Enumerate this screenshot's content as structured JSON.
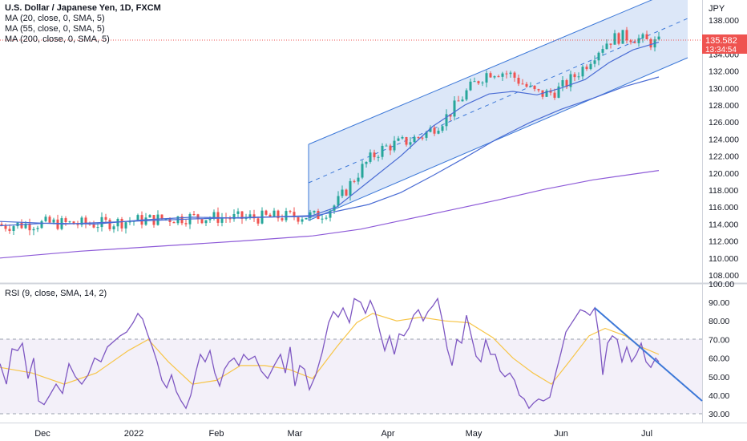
{
  "title": "U.S. Dollar / Japanese Yen, 1D, FXCM",
  "currency": "JPY",
  "price_label": "135.582",
  "countdown_label": "13:34:54",
  "legends": {
    "ma20": "MA (20, close, 0, SMA, 5)",
    "ma55": "MA (55, close, 0, SMA, 5)",
    "ma200": "MA (200, close, 0, SMA, 5)",
    "rsi": "RSI (9, close, SMA, 14, 2)"
  },
  "colors": {
    "up": "#26a69a",
    "down": "#ef5350",
    "ma": "#4a6cd4",
    "ma200": "#8e5bd8",
    "channel": "#3c78d8",
    "rsi": "#7e57c2",
    "rsi_ma": "#f7c548",
    "price_tag": "#ef5350"
  },
  "chart_data": [
    {
      "type": "candlestick",
      "title": "U.S. Dollar / Japanese Yen, 1D, FXCM",
      "y_unit": "JPY",
      "ylim": [
        107.0,
        140.0
      ],
      "y_ticks": [
        "108.000",
        "110.000",
        "112.000",
        "114.000",
        "116.000",
        "118.000",
        "120.000",
        "122.000",
        "124.000",
        "126.000",
        "128.000",
        "130.000",
        "132.000",
        "134.000",
        "136.000",
        "138.000"
      ],
      "x_ticks": [
        "Dec",
        "2022",
        "Feb",
        "Mar",
        "Apr",
        "May",
        "Jun",
        "Jul"
      ],
      "last_price": 135.582,
      "series": [
        {
          "name": "MA (20, close, 0, SMA, 5)",
          "points": [
            [
              0,
              113.8
            ],
            [
              60,
              114.1
            ],
            [
              120,
              114.0
            ],
            [
              180,
              114.5
            ],
            [
              240,
              114.8
            ],
            [
              300,
              114.7
            ],
            [
              360,
              114.9
            ],
            [
              390,
              115.0
            ],
            [
              420,
              116.0
            ],
            [
              460,
              119.0
            ],
            [
              500,
              122.0
            ],
            [
              540,
              125.5
            ],
            [
              580,
              128.0
            ],
            [
              610,
              129.3
            ],
            [
              640,
              129.6
            ],
            [
              670,
              129.2
            ],
            [
              700,
              130.0
            ],
            [
              730,
              131.0
            ],
            [
              760,
              133.0
            ],
            [
              790,
              134.5
            ],
            [
              822,
              135.4
            ]
          ]
        },
        {
          "name": "MA (55, close, 0, SMA, 5)",
          "points": [
            [
              0,
              114.3
            ],
            [
              80,
              114.0
            ],
            [
              160,
              114.3
            ],
            [
              240,
              114.6
            ],
            [
              320,
              114.8
            ],
            [
              390,
              114.9
            ],
            [
              420,
              115.5
            ],
            [
              460,
              116.3
            ],
            [
              500,
              117.7
            ],
            [
              540,
              119.7
            ],
            [
              580,
              121.8
            ],
            [
              620,
              124.0
            ],
            [
              660,
              125.9
            ],
            [
              700,
              127.5
            ],
            [
              740,
              128.8
            ],
            [
              780,
              130.2
            ],
            [
              822,
              131.3
            ]
          ]
        },
        {
          "name": "MA (200, close, 0, SMA, 5)",
          "points": [
            [
              0,
              110.0
            ],
            [
              100,
              110.8
            ],
            [
              200,
              111.4
            ],
            [
              300,
              112.0
            ],
            [
              390,
              112.6
            ],
            [
              450,
              113.4
            ],
            [
              500,
              114.4
            ],
            [
              560,
              115.6
            ],
            [
              620,
              116.8
            ],
            [
              680,
              118.1
            ],
            [
              740,
              119.2
            ],
            [
              822,
              120.3
            ]
          ]
        }
      ],
      "candles_approx": [
        {
          "period": "Nov-Dec",
          "range": [
            112.7,
            115.5
          ]
        },
        {
          "period": "Jan",
          "range": [
            113.5,
            116.3
          ]
        },
        {
          "period": "Feb",
          "range": [
            114.0,
            116.0
          ]
        },
        {
          "period": "Mar",
          "range": [
            114.7,
            125.0
          ]
        },
        {
          "period": "Apr",
          "range": [
            121.3,
            129.3
          ]
        },
        {
          "period": "May",
          "range": [
            126.3,
            131.3
          ]
        },
        {
          "period": "Jun",
          "range": [
            128.8,
            136.6
          ]
        },
        {
          "period": "Jul",
          "range": [
            134.5,
            136.6
          ]
        }
      ]
    },
    {
      "type": "line",
      "title": "RSI (9, close, SMA, 14, 2)",
      "ylim": [
        26.0,
        100.0
      ],
      "y_ticks": [
        "30.00",
        "40.00",
        "50.00",
        "60.00",
        "70.00",
        "80.00",
        "90.00",
        "100.00"
      ],
      "bands": [
        30,
        70
      ],
      "series": [
        {
          "name": "RSI (9, close, SMA, 14, 2)",
          "points": [
            [
              0,
              57
            ],
            [
              8,
              46
            ],
            [
              15,
              65
            ],
            [
              22,
              64
            ],
            [
              28,
              68
            ],
            [
              35,
              49
            ],
            [
              42,
              60
            ],
            [
              48,
              37
            ],
            [
              55,
              35
            ],
            [
              62,
              40
            ],
            [
              70,
              46
            ],
            [
              78,
              41
            ],
            [
              86,
              57
            ],
            [
              94,
              50
            ],
            [
              102,
              46
            ],
            [
              110,
              51
            ],
            [
              118,
              60
            ],
            [
              126,
              58
            ],
            [
              134,
              66
            ],
            [
              142,
              69
            ],
            [
              150,
              72
            ],
            [
              158,
              74
            ],
            [
              166,
              79
            ],
            [
              172,
              84
            ],
            [
              178,
              81
            ],
            [
              184,
              73
            ],
            [
              190,
              66
            ],
            [
              196,
              58
            ],
            [
              202,
              48
            ],
            [
              208,
              44
            ],
            [
              214,
              51
            ],
            [
              220,
              42
            ],
            [
              226,
              37
            ],
            [
              232,
              33
            ],
            [
              238,
              40
            ],
            [
              244,
              52
            ],
            [
              250,
              62
            ],
            [
              256,
              58
            ],
            [
              262,
              64
            ],
            [
              268,
              52
            ],
            [
              274,
              45
            ],
            [
              280,
              54
            ],
            [
              286,
              58
            ],
            [
              292,
              60
            ],
            [
              298,
              56
            ],
            [
              304,
              62
            ],
            [
              310,
              59
            ],
            [
              318,
              61
            ],
            [
              326,
              53
            ],
            [
              334,
              49
            ],
            [
              342,
              56
            ],
            [
              350,
              62
            ],
            [
              356,
              52
            ],
            [
              362,
              66
            ],
            [
              368,
              45
            ],
            [
              374,
              56
            ],
            [
              380,
              54
            ],
            [
              386,
              43
            ],
            [
              394,
              51
            ],
            [
              402,
              63
            ],
            [
              410,
              79
            ],
            [
              416,
              85
            ],
            [
              422,
              82
            ],
            [
              428,
              87
            ],
            [
              436,
              79
            ],
            [
              442,
              92
            ],
            [
              450,
              90
            ],
            [
              456,
              84
            ],
            [
              462,
              91
            ],
            [
              468,
              85
            ],
            [
              474,
              74
            ],
            [
              480,
              64
            ],
            [
              486,
              72
            ],
            [
              492,
              62
            ],
            [
              498,
              73
            ],
            [
              504,
              72
            ],
            [
              510,
              76
            ],
            [
              516,
              83
            ],
            [
              522,
              86
            ],
            [
              528,
              80
            ],
            [
              534,
              85
            ],
            [
              540,
              88
            ],
            [
              546,
              92
            ],
            [
              552,
              80
            ],
            [
              558,
              65
            ],
            [
              564,
              56
            ],
            [
              570,
              70
            ],
            [
              576,
              68
            ],
            [
              582,
              83
            ],
            [
              588,
              72
            ],
            [
              594,
              61
            ],
            [
              600,
              58
            ],
            [
              606,
              70
            ],
            [
              612,
              62
            ],
            [
              618,
              62
            ],
            [
              624,
              53
            ],
            [
              630,
              50
            ],
            [
              636,
              52
            ],
            [
              642,
              48
            ],
            [
              648,
              40
            ],
            [
              654,
              38
            ],
            [
              660,
              33
            ],
            [
              666,
              36
            ],
            [
              672,
              38
            ],
            [
              678,
              37
            ],
            [
              686,
              39
            ],
            [
              694,
              53
            ],
            [
              700,
              63
            ],
            [
              706,
              74
            ],
            [
              712,
              78
            ],
            [
              718,
              82
            ],
            [
              724,
              86
            ],
            [
              730,
              85
            ],
            [
              736,
              83
            ],
            [
              742,
              87
            ],
            [
              748,
              70
            ],
            [
              752,
              51
            ],
            [
              758,
              68
            ],
            [
              764,
              72
            ],
            [
              770,
              70
            ],
            [
              776,
              58
            ],
            [
              782,
              66
            ],
            [
              788,
              58
            ],
            [
              794,
              62
            ],
            [
              800,
              68
            ],
            [
              806,
              58
            ],
            [
              812,
              55
            ],
            [
              818,
              60
            ],
            [
              822,
              58
            ]
          ]
        },
        {
          "name": "RSI-based MA",
          "points": [
            [
              0,
              55
            ],
            [
              40,
              52
            ],
            [
              80,
              46
            ],
            [
              120,
              52
            ],
            [
              160,
              64
            ],
            [
              185,
              70
            ],
            [
              210,
              58
            ],
            [
              240,
              46
            ],
            [
              270,
              48
            ],
            [
              300,
              56
            ],
            [
              330,
              56
            ],
            [
              360,
              54
            ],
            [
              390,
              49
            ],
            [
              420,
              66
            ],
            [
              445,
              79
            ],
            [
              465,
              84
            ],
            [
              495,
              80
            ],
            [
              525,
              82
            ],
            [
              555,
              80
            ],
            [
              585,
              79
            ],
            [
              615,
              71
            ],
            [
              640,
              60
            ],
            [
              665,
              52
            ],
            [
              688,
              46
            ],
            [
              710,
              58
            ],
            [
              735,
              72
            ],
            [
              755,
              76
            ],
            [
              780,
              72
            ],
            [
              800,
              66
            ],
            [
              822,
              62
            ]
          ]
        }
      ]
    }
  ]
}
